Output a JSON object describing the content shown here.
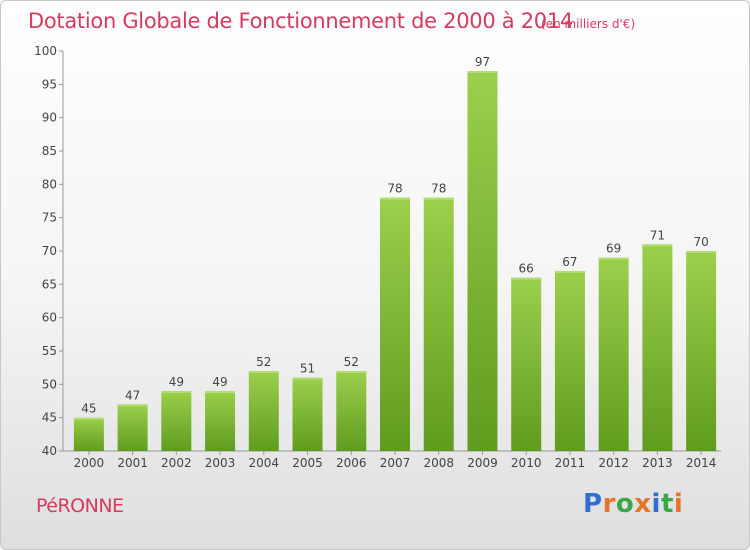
{
  "header": {
    "title": "Dotation Globale de Fonctionnement de 2000 à 2014",
    "unit_note": "(en milliers d'€)"
  },
  "footer": {
    "commune": "PéRONNE",
    "logo_letters": [
      "P",
      "r",
      "o",
      "x",
      "i",
      "t",
      "i"
    ],
    "logo_colors": [
      "#2f6fd0",
      "#e8732a",
      "#3aa84a",
      "#e8732a",
      "#2f6fd0",
      "#3aa84a",
      "#e8732a"
    ]
  },
  "colors": {
    "accent": "#d63a5e",
    "bar_top": "#9ccf4c",
    "bar_bottom": "#5f9c1e",
    "axis": "#999999"
  },
  "chart_data": {
    "type": "bar",
    "title": "Dotation Globale de Fonctionnement de 2000 à 2014",
    "subtitle": "(en milliers d'€)",
    "categories": [
      "2000",
      "2001",
      "2002",
      "2003",
      "2004",
      "2005",
      "2006",
      "2007",
      "2008",
      "2009",
      "2010",
      "2011",
      "2012",
      "2013",
      "2014"
    ],
    "values": [
      45,
      47,
      49,
      49,
      52,
      51,
      52,
      78,
      78,
      97,
      66,
      67,
      69,
      71,
      70
    ],
    "ylim": [
      40,
      100
    ],
    "yticks": [
      40,
      45,
      50,
      55,
      60,
      65,
      70,
      75,
      80,
      85,
      90,
      95,
      100
    ],
    "grid": false,
    "legend": "none"
  }
}
